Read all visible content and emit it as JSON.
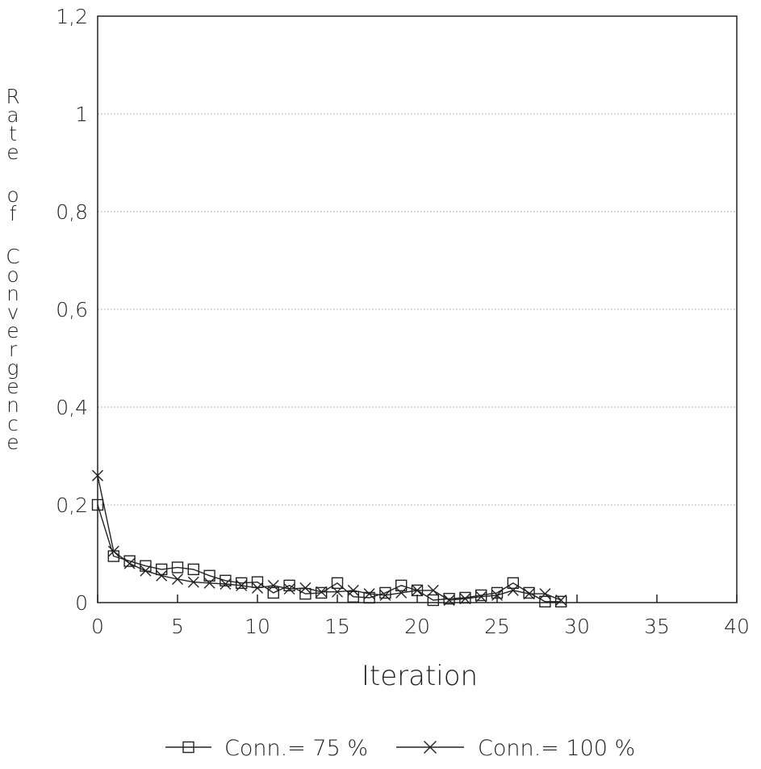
{
  "chart_data": {
    "type": "line",
    "title": "",
    "xlabel": "Iteration",
    "ylabel": "Rate of Convergence",
    "xlim": [
      0,
      40
    ],
    "ylim": [
      0,
      1.2
    ],
    "x_ticks": [
      0,
      5,
      10,
      15,
      20,
      25,
      30,
      35,
      40
    ],
    "x_tick_labels": [
      "0",
      "5",
      "10",
      "15",
      "20",
      "25",
      "30",
      "35",
      "40"
    ],
    "y_ticks": [
      0,
      0.2,
      0.4,
      0.6,
      0.8,
      1,
      1.2
    ],
    "y_tick_labels": [
      "0",
      "0,2",
      "0,4",
      "0,6",
      "0,8",
      "1",
      "1,2"
    ],
    "grid": "horizontal dotted",
    "legend": "bottom",
    "series": [
      {
        "name": "Conn.= 75 %",
        "marker": "square",
        "x": [
          0,
          1,
          2,
          3,
          4,
          5,
          6,
          7,
          8,
          9,
          10,
          11,
          12,
          13,
          14,
          15,
          16,
          17,
          18,
          19,
          20,
          21,
          22,
          23,
          24,
          25,
          26,
          27,
          28,
          29
        ],
        "values": [
          0.2,
          0.095,
          0.085,
          0.075,
          0.068,
          0.072,
          0.068,
          0.055,
          0.045,
          0.04,
          0.042,
          0.02,
          0.035,
          0.018,
          0.02,
          0.04,
          0.012,
          0.01,
          0.02,
          0.035,
          0.025,
          0.005,
          0.008,
          0.01,
          0.015,
          0.02,
          0.04,
          0.02,
          0.002,
          0.002
        ]
      },
      {
        "name": "Conn.= 100 %",
        "marker": "x",
        "x": [
          0,
          1,
          2,
          3,
          4,
          5,
          6,
          7,
          8,
          9,
          10,
          11,
          12,
          13,
          14,
          15,
          16,
          17,
          18,
          19,
          20,
          21,
          22,
          23,
          24,
          25,
          26,
          27,
          28,
          29
        ],
        "values": [
          0.26,
          0.105,
          0.08,
          0.065,
          0.055,
          0.048,
          0.042,
          0.04,
          0.038,
          0.035,
          0.03,
          0.035,
          0.028,
          0.03,
          0.022,
          0.022,
          0.025,
          0.018,
          0.015,
          0.02,
          0.025,
          0.025,
          0.005,
          0.008,
          0.012,
          0.015,
          0.025,
          0.018,
          0.018,
          0.005
        ]
      }
    ]
  }
}
